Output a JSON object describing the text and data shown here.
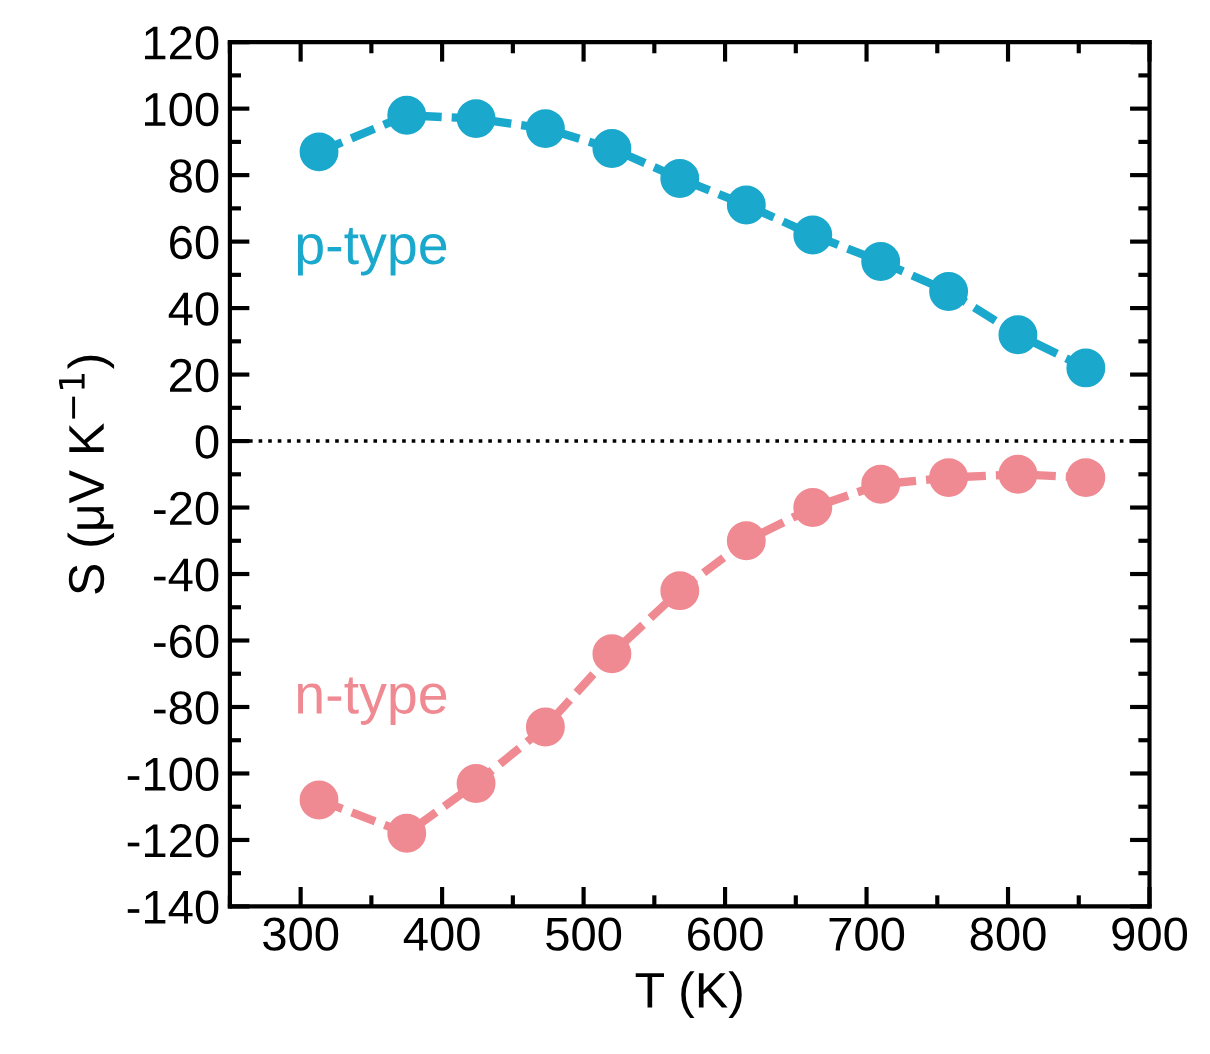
{
  "chart_data": {
    "type": "line",
    "xlabel": "T (K)",
    "ylabel": "S (μV K$^{−1}$)",
    "xlim": [
      250,
      900
    ],
    "xticks": [
      300,
      400,
      500,
      600,
      700,
      800,
      900
    ],
    "ylim": [
      -140,
      120
    ],
    "yticks": [
      -140,
      -120,
      -100,
      -80,
      -60,
      -40,
      -20,
      0,
      20,
      40,
      60,
      80,
      100,
      120
    ],
    "marker": "circle",
    "line_style": "dashed",
    "grid": false,
    "ref_lines": [
      {
        "axis": "y",
        "value": 0,
        "color": "#000000",
        "line_style": "dotted"
      }
    ],
    "series": [
      {
        "name": "p-type",
        "color": "#1aa8cc",
        "x": [
          313,
          375,
          424,
          473,
          520,
          568,
          615,
          662,
          710,
          758,
          807,
          855
        ],
        "values": [
          87,
          98,
          97,
          94,
          88,
          79,
          71,
          62,
          54,
          45,
          32,
          22
        ]
      },
      {
        "name": "n-type",
        "color": "#f08a92",
        "x": [
          313,
          375,
          424,
          473,
          520,
          568,
          615,
          662,
          710,
          758,
          807,
          855
        ],
        "values": [
          -108,
          -118,
          -103,
          -86,
          -64,
          -45,
          -30,
          -20,
          -13,
          -11,
          -10,
          -11
        ]
      }
    ]
  }
}
